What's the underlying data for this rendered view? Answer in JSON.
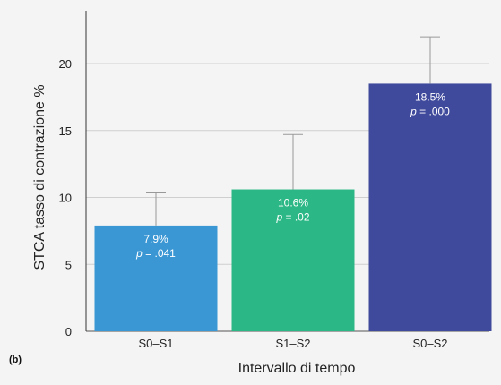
{
  "panel_label": "(b)",
  "chart_data": {
    "type": "bar",
    "categories": [
      "S0–S1",
      "S1–S2",
      "S0–S2"
    ],
    "values": [
      7.9,
      10.6,
      18.5
    ],
    "error_upper": [
      10.4,
      14.7,
      22.0
    ],
    "bar_text": [
      {
        "pct": "7.9%",
        "p_symbol": "p",
        "p_value": " = .041"
      },
      {
        "pct": "10.6%",
        "p_symbol": "p",
        "p_value": " = .02"
      },
      {
        "pct": "18.5%",
        "p_symbol": "p",
        "p_value": " = .000"
      }
    ],
    "colors": [
      "#3a97d4",
      "#2bb886",
      "#404a9c"
    ],
    "xlabel": "Intervallo di tempo",
    "ylabel": "STCA tasso di contrazione %",
    "ylim": [
      0,
      25
    ],
    "yticks": [
      0,
      5,
      10,
      15,
      20
    ],
    "grid": true
  }
}
